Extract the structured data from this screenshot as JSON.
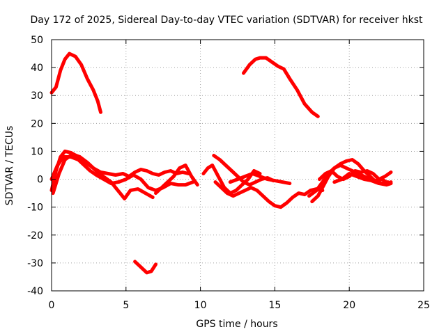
{
  "chart_data": {
    "type": "line",
    "title": "Day 172 of 2025, Sidereal Day-to-day VTEC variation (SDTVAR) for receiver hkst",
    "xlabel": "GPS time / hours",
    "ylabel": "SDTVAR / TECUs",
    "xlim": [
      0,
      25
    ],
    "ylim": [
      -40,
      50
    ],
    "xticks": [
      0,
      5,
      10,
      15,
      20,
      25
    ],
    "yticks": [
      -40,
      -30,
      -20,
      -10,
      0,
      10,
      20,
      30,
      40,
      50
    ],
    "grid": true,
    "legend": "none",
    "color": "#ff0000",
    "series": [
      {
        "name": "arc-high-early",
        "x": [
          0.0,
          0.3,
          0.6,
          0.9,
          1.2,
          1.6,
          2.0,
          2.4,
          2.8,
          3.1,
          3.3
        ],
        "y": [
          31,
          33,
          39,
          43,
          45,
          44,
          41,
          36,
          32,
          28,
          24
        ]
      },
      {
        "name": "arc-high-late",
        "x": [
          12.9,
          13.3,
          13.7,
          14.0,
          14.4,
          14.8,
          15.2,
          15.6,
          16.0,
          16.5,
          17.0,
          17.5,
          17.9
        ],
        "y": [
          38,
          41,
          43,
          43.5,
          43.5,
          42,
          40.5,
          39.5,
          36,
          32,
          27,
          24,
          22.5
        ]
      },
      {
        "name": "arc-low",
        "x": [
          5.6,
          6.0,
          6.4,
          6.7,
          7.0
        ],
        "y": [
          -29.5,
          -31.5,
          -33.5,
          -33,
          -30.5
        ]
      },
      {
        "name": "cluster-early-a",
        "x": [
          0.0,
          0.3,
          0.6,
          0.9,
          1.3,
          1.8,
          2.3,
          2.8,
          3.3,
          3.8,
          4.3,
          4.8,
          5.2,
          5.6,
          6.0,
          6.4,
          6.8,
          7.2,
          7.6,
          8.0,
          8.4,
          8.8,
          9.2
        ],
        "y": [
          -4,
          3,
          8,
          10,
          9.5,
          8,
          6,
          4,
          2.5,
          2,
          1.5,
          2,
          1,
          2.5,
          3.5,
          3,
          2,
          1.5,
          2.5,
          3,
          2,
          2.5,
          2
        ]
      },
      {
        "name": "cluster-early-b",
        "x": [
          0.1,
          0.5,
          0.9,
          1.4,
          1.9,
          2.4,
          2.8,
          3.2,
          3.6,
          4.0,
          4.3,
          4.6,
          4.9,
          5.3,
          5.8,
          6.3,
          6.8
        ],
        "y": [
          -5,
          2,
          7,
          9,
          8,
          6,
          4,
          2,
          0.5,
          -1,
          -3,
          -5,
          -7,
          -4,
          -3.5,
          -5,
          -6.5
        ]
      },
      {
        "name": "cluster-early-c",
        "x": [
          0.0,
          0.4,
          0.8,
          1.3,
          1.8,
          2.2,
          2.6,
          3.0,
          3.5,
          4.0,
          4.5,
          5.0,
          5.5,
          6.0,
          6.5,
          7.0,
          7.5,
          8.0,
          8.5,
          9.0,
          9.5
        ],
        "y": [
          0,
          5,
          8,
          8,
          7,
          5,
          3,
          1.5,
          0,
          -1.5,
          -1,
          0,
          1.5,
          0,
          -3,
          -4,
          -3,
          -1.5,
          -2,
          -2,
          -1
        ]
      },
      {
        "name": "cluster-mid-a",
        "x": [
          7.0,
          7.4,
          7.8,
          8.2,
          8.6,
          9.0,
          9.4,
          9.8
        ],
        "y": [
          -5,
          -3,
          -1,
          1,
          4,
          5,
          1,
          -2
        ]
      },
      {
        "name": "cluster-mid-b",
        "x": [
          10.2,
          10.5,
          10.8,
          11.0,
          11.3,
          11.6,
          12.0,
          12.4,
          12.8,
          13.2,
          13.6,
          14.0
        ],
        "y": [
          2,
          4,
          5,
          3,
          0,
          -3,
          -5,
          -4,
          -2,
          0,
          3,
          2
        ]
      },
      {
        "name": "cluster-mid-c",
        "x": [
          10.9,
          11.3,
          11.7,
          12.1,
          12.5,
          12.9,
          13.3,
          13.7,
          14.1,
          14.5,
          14.9
        ],
        "y": [
          8.5,
          7,
          5,
          3,
          1,
          -1,
          -2,
          -1,
          0,
          0.5,
          -0.5
        ]
      },
      {
        "name": "cluster-mid-d",
        "x": [
          11.0,
          11.4,
          11.8,
          12.2,
          12.6,
          13.0,
          13.4,
          13.8,
          14.2,
          14.6,
          15.0,
          15.4,
          15.8,
          16.2,
          16.6,
          17.0,
          17.4,
          17.8,
          18.2
        ],
        "y": [
          -1,
          -3,
          -5,
          -6,
          -5,
          -4,
          -3,
          -4,
          -6,
          -8,
          -9.5,
          -10,
          -8.5,
          -6.5,
          -5,
          -5.5,
          -4,
          -3.5,
          -4
        ]
      },
      {
        "name": "cluster-mid-e",
        "x": [
          12.0,
          12.5,
          13.0,
          13.5,
          14.0,
          14.5,
          15.0,
          15.5,
          16.0
        ],
        "y": [
          -1,
          0,
          1,
          2,
          1,
          0,
          -0.5,
          -1,
          -1.5
        ]
      },
      {
        "name": "cluster-late-a",
        "x": [
          17.5,
          17.9,
          18.3,
          18.6,
          19.0,
          19.4,
          19.8,
          20.2,
          20.6,
          21.0,
          21.4,
          21.8,
          22.2,
          22.6
        ],
        "y": [
          -8,
          -6,
          -2,
          1,
          4,
          5.5,
          6.5,
          7,
          5.5,
          3,
          1,
          -1,
          -1.5,
          -1
        ]
      },
      {
        "name": "cluster-late-b",
        "x": [
          17.3,
          17.8,
          18.2,
          18.6,
          19.0,
          19.4,
          19.8,
          20.2,
          20.6,
          21.0,
          21.4,
          21.8,
          22.2,
          22.6,
          22.8
        ],
        "y": [
          -6,
          -4,
          -1,
          2,
          4,
          5,
          4,
          3,
          2,
          1,
          0,
          -0.5,
          0,
          -1.5,
          -1
        ]
      },
      {
        "name": "cluster-late-c",
        "x": [
          18.0,
          18.4,
          18.8,
          19.2,
          19.6,
          20.0,
          20.4,
          20.8,
          21.2,
          21.6,
          22.0,
          22.4,
          22.8
        ],
        "y": [
          0,
          2,
          3,
          1,
          0,
          1,
          3,
          2.5,
          3,
          2,
          0,
          1,
          2.5
        ]
      },
      {
        "name": "cluster-late-d",
        "x": [
          19.0,
          19.5,
          20.0,
          20.5,
          21.0,
          21.5,
          22.0,
          22.5,
          22.8
        ],
        "y": [
          -1,
          0,
          2,
          1,
          0,
          -0.5,
          -1.5,
          -2,
          -1.5
        ]
      }
    ]
  }
}
